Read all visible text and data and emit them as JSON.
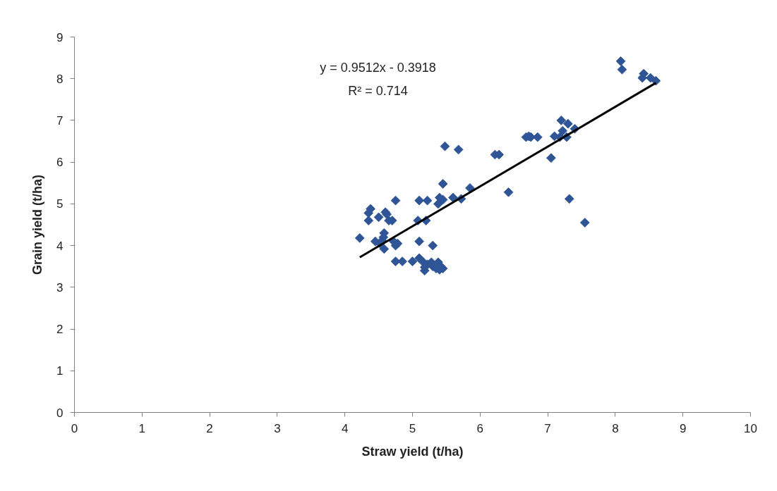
{
  "chart_data": {
    "type": "scatter",
    "xlabel": "Straw yield (t/ha)",
    "ylabel": "Grain yield (t/ha)",
    "xlim": [
      0,
      10
    ],
    "ylim": [
      0,
      9
    ],
    "xticks": [
      0,
      1,
      2,
      3,
      4,
      5,
      6,
      7,
      8,
      9,
      10
    ],
    "yticks": [
      0,
      1,
      2,
      3,
      4,
      5,
      6,
      7,
      8,
      9
    ],
    "grid": false,
    "marker": "diamond",
    "annotations": [
      "y = 0.9512x - 0.3918",
      "R² = 0.714"
    ],
    "series": [
      {
        "color": "#2f5597",
        "x": [
          4.22,
          4.35,
          4.35,
          4.38,
          4.45,
          4.5,
          4.52,
          4.55,
          4.57,
          4.58,
          4.6,
          4.62,
          4.58,
          4.65,
          4.7,
          4.72,
          4.75,
          4.75,
          4.78,
          4.75,
          4.85,
          5.0,
          5.08,
          5.1,
          5.1,
          5.1,
          5.15,
          5.18,
          5.18,
          5.2,
          5.22,
          5.22,
          5.28,
          5.3,
          5.3,
          5.35,
          5.38,
          5.4,
          5.42,
          5.45,
          5.38,
          5.4,
          5.45,
          5.45,
          5.48,
          5.6,
          5.68,
          5.72,
          5.85,
          6.22,
          6.28,
          6.42,
          6.68,
          6.72,
          6.75,
          6.85,
          7.05,
          7.1,
          7.18,
          7.2,
          7.22,
          7.3,
          7.28,
          7.32,
          7.4,
          7.55,
          8.08,
          8.1,
          8.4,
          8.42,
          8.52,
          8.6
        ],
        "values": [
          4.18,
          4.6,
          4.78,
          4.88,
          4.1,
          4.68,
          4.05,
          4.12,
          4.2,
          4.3,
          4.8,
          4.75,
          3.92,
          4.6,
          4.6,
          4.1,
          5.08,
          4.0,
          4.05,
          3.62,
          3.62,
          3.62,
          4.6,
          5.08,
          4.1,
          3.7,
          3.62,
          3.48,
          3.4,
          4.6,
          5.08,
          3.55,
          3.6,
          3.5,
          4.0,
          3.45,
          3.6,
          3.42,
          3.5,
          3.45,
          5.0,
          5.15,
          5.1,
          5.48,
          6.38,
          5.15,
          6.3,
          5.12,
          5.38,
          6.18,
          6.18,
          5.28,
          6.6,
          6.62,
          6.6,
          6.6,
          6.1,
          6.62,
          6.6,
          7.0,
          6.75,
          6.92,
          6.6,
          5.12,
          6.8,
          4.55,
          8.42,
          8.22,
          8.02,
          8.12,
          8.02,
          7.95
        ]
      },
      {
        "type": "line",
        "color": "#000000",
        "x": [
          4.22,
          8.6
        ],
        "values": [
          3.72,
          7.9
        ],
        "line_style": "solid",
        "marker": "none"
      }
    ]
  }
}
